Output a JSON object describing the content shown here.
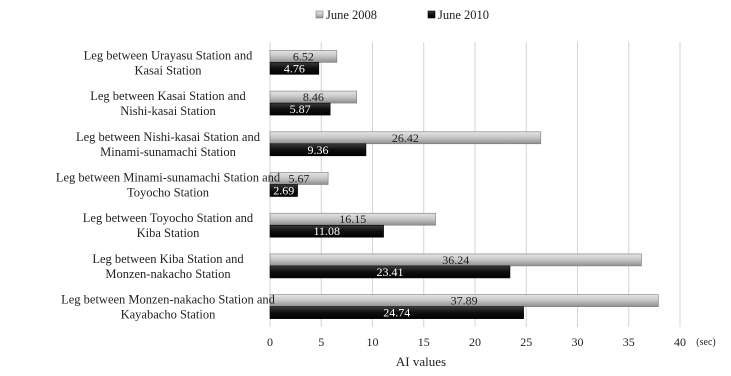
{
  "chart_data": {
    "type": "bar",
    "orientation": "horizontal",
    "categories": [
      [
        "Leg between Urayasu Station and",
        "Kasai Station"
      ],
      [
        "Leg between Kasai Station and",
        "Nishi-kasai Station"
      ],
      [
        "Leg between Nishi-kasai Station and",
        "Minami-sunamachi Station"
      ],
      [
        "Leg between Minami-sunamachi Station and",
        "Toyocho Station"
      ],
      [
        "Leg between Toyocho Station and",
        "Kiba Station"
      ],
      [
        "Leg between Kiba Station and",
        "Monzen-nakacho Station"
      ],
      [
        "Leg between Monzen-nakacho Station and",
        "Kayabacho Station"
      ]
    ],
    "series": [
      {
        "name": "June 2008",
        "values": [
          6.52,
          8.46,
          26.42,
          5.67,
          16.15,
          36.24,
          37.89
        ],
        "labels": [
          "6.52",
          "8.46",
          "26.42",
          "5.67",
          "16.15",
          "36.24",
          "37.89"
        ],
        "color": "#bdbdbd"
      },
      {
        "name": "June 2010",
        "values": [
          4.76,
          5.87,
          9.36,
          2.69,
          11.08,
          23.41,
          24.74
        ],
        "labels": [
          "4.76",
          "5.87",
          "9.36",
          "2.69",
          "11.08",
          "23.41",
          "24.74"
        ],
        "color": "#111111"
      }
    ],
    "xlabel": "AI values",
    "x_unit": "(sec)",
    "xlim": [
      0,
      40
    ],
    "xticks": [
      "0",
      "5",
      "10",
      "15",
      "20",
      "25",
      "30",
      "35",
      "40"
    ],
    "grid": true,
    "legend": "top-center"
  }
}
